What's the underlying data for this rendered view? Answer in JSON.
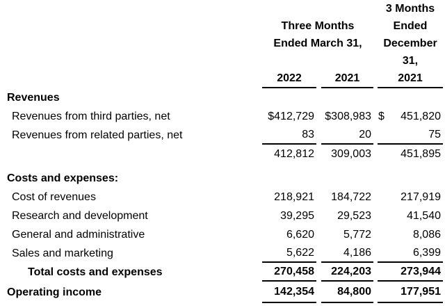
{
  "document": {
    "background_color": "#ffffff",
    "text_color": "#000000",
    "rule_color": "#000000"
  },
  "table": {
    "column_group_headers": {
      "march_group": {
        "line1": "Three Months",
        "line2": "Ended March 31,"
      },
      "december_group": {
        "line1": "3 Months",
        "line2": "Ended",
        "line3": "December",
        "line4": "31,"
      }
    },
    "year_headers": [
      "2022",
      "2021",
      "2021"
    ],
    "rows": [
      {
        "label": "Revenues"
      },
      {
        "label": "Revenues from third parties, net",
        "col1": "$412,729",
        "col2": "$308,983",
        "col3_currency": "$",
        "col3": "451,820"
      },
      {
        "label": "Revenues from related parties, net",
        "col1": "83",
        "col2": "20",
        "col3": "75"
      },
      {
        "label": "",
        "col1": "412,812",
        "col2": "309,003",
        "col3": "451,895"
      },
      {
        "label": "Costs and expenses:"
      },
      {
        "label": "Cost of revenues",
        "col1": "218,921",
        "col2": "184,722",
        "col3": "217,919"
      },
      {
        "label": "Research and development",
        "col1": "39,295",
        "col2": "29,523",
        "col3": "41,540"
      },
      {
        "label": "General and administrative",
        "col1": "6,620",
        "col2": "5,772",
        "col3": "8,086"
      },
      {
        "label": "Sales and marketing",
        "col1": "5,622",
        "col2": "4,186",
        "col3": "6,399"
      },
      {
        "label": "Total costs and expenses",
        "col1": "270,458",
        "col2": "224,203",
        "col3": "273,944"
      },
      {
        "label": "Operating income",
        "col1": "142,354",
        "col2": "84,800",
        "col3": "177,951"
      }
    ]
  }
}
